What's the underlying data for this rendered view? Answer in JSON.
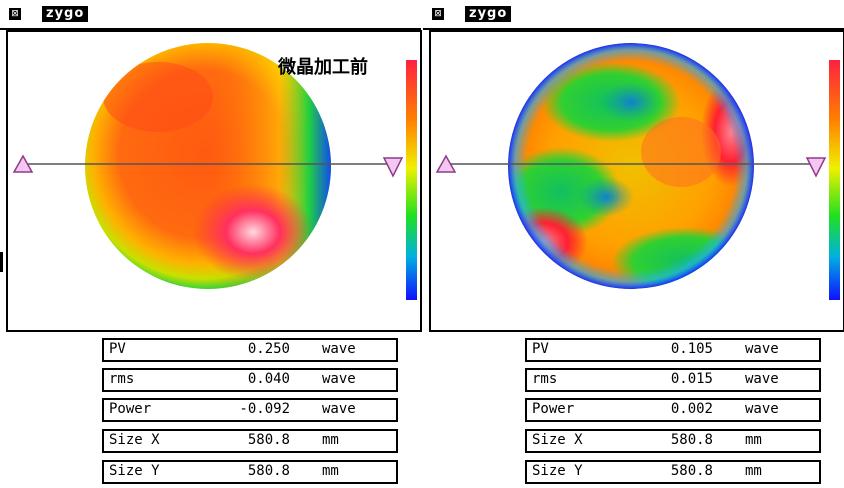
{
  "colors": {
    "window_border": "#000000",
    "profile_line": "#555555",
    "marker_fill": "#f3c7f1",
    "marker_stroke": "#8e3a8a"
  },
  "panels": [
    {
      "logo": "zygo",
      "close_icon": "close-box-icon",
      "label": "微晶加工前",
      "rows": [
        {
          "name": "PV",
          "value": "0.250",
          "unit": "wave"
        },
        {
          "name": "rms",
          "value": "0.040",
          "unit": "wave"
        },
        {
          "name": "Power",
          "value": "-0.092",
          "unit": "wave"
        },
        {
          "name": "Size X",
          "value": "580.8",
          "unit": "mm"
        },
        {
          "name": "Size Y",
          "value": "580.8",
          "unit": "mm"
        }
      ]
    },
    {
      "logo": "zygo",
      "close_icon": "close-box-icon",
      "rows": [
        {
          "name": "PV",
          "value": "0.105",
          "unit": "wave"
        },
        {
          "name": "rms",
          "value": "0.015",
          "unit": "wave"
        },
        {
          "name": "Power",
          "value": "0.002",
          "unit": "wave"
        },
        {
          "name": "Size X",
          "value": "580.8",
          "unit": "mm"
        },
        {
          "name": "Size Y",
          "value": "580.8",
          "unit": "mm"
        }
      ]
    }
  ]
}
